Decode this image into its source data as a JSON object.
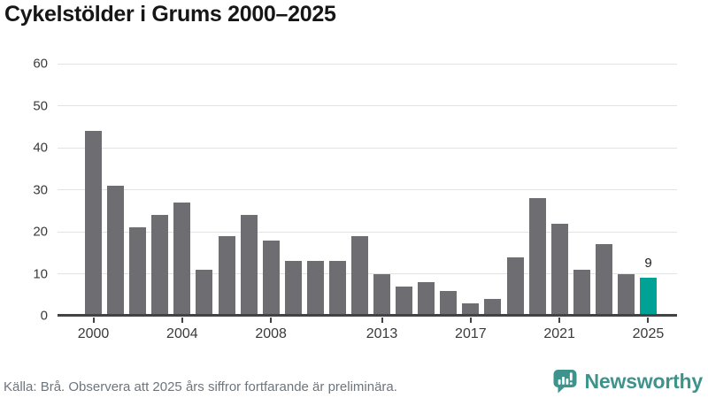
{
  "title": "Cykelstölder i Grums 2000–2025",
  "chart_data": {
    "type": "bar",
    "title": "Cykelstölder i Grums 2000–2025",
    "categories": [
      2000,
      2001,
      2002,
      2003,
      2004,
      2005,
      2006,
      2007,
      2008,
      2009,
      2010,
      2011,
      2012,
      2013,
      2014,
      2015,
      2016,
      2017,
      2018,
      2019,
      2020,
      2021,
      2022,
      2023,
      2024,
      2025
    ],
    "values": [
      44,
      31,
      21,
      24,
      27,
      11,
      19,
      24,
      18,
      13,
      13,
      13,
      19,
      10,
      7,
      8,
      6,
      3,
      4,
      14,
      28,
      22,
      11,
      17,
      10,
      9
    ],
    "highlight_index": 25,
    "highlight_value_label": "9",
    "xlabel": "",
    "ylabel": "",
    "ylim": [
      0,
      60
    ],
    "y_ticks": [
      0,
      10,
      20,
      30,
      40,
      50,
      60
    ],
    "x_tick_indices": [
      0,
      4,
      8,
      13,
      17,
      21,
      25
    ],
    "x_tick_labels": [
      "2000",
      "2004",
      "2008",
      "2013",
      "2017",
      "2021",
      "2025"
    ],
    "grid": "horizontal",
    "legend": "none"
  },
  "colors": {
    "bar": "#6d6d72",
    "highlight": "#00a296",
    "grid": "#e3e3e3",
    "axis": "#424247",
    "title_text": "#161616",
    "tick_text": "#3a3a3a",
    "muted_text": "#6d757d",
    "logo": "#3e948d"
  },
  "footer": {
    "source": "Källa: Brå. Observera att 2025 års siffror fortfarande är preliminära.",
    "logo_text": "Newsworthy"
  }
}
